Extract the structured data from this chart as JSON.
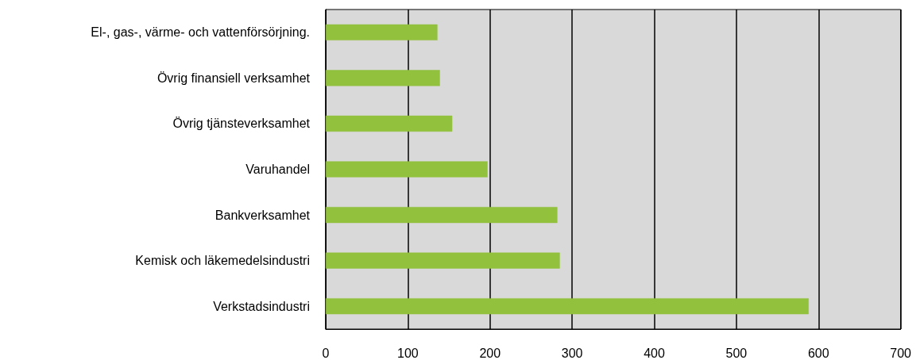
{
  "chart_data": {
    "type": "bar",
    "orientation": "horizontal",
    "categories": [
      "El-, gas-, värme- och vattenförsörjning.",
      "Övrig finansiell verksamhet",
      "Övrig tjänsteverksamhet",
      "Varuhandel",
      "Bankverksamhet",
      "Kemisk och läkemedelsindustri",
      "Verkstadsindustri"
    ],
    "values": [
      136,
      139,
      154,
      197,
      282,
      285,
      588
    ],
    "color": "#92c13e",
    "xlim": [
      0,
      700
    ],
    "xticks": [
      0,
      100,
      200,
      300,
      400,
      500,
      600,
      700
    ],
    "grid": "x"
  }
}
